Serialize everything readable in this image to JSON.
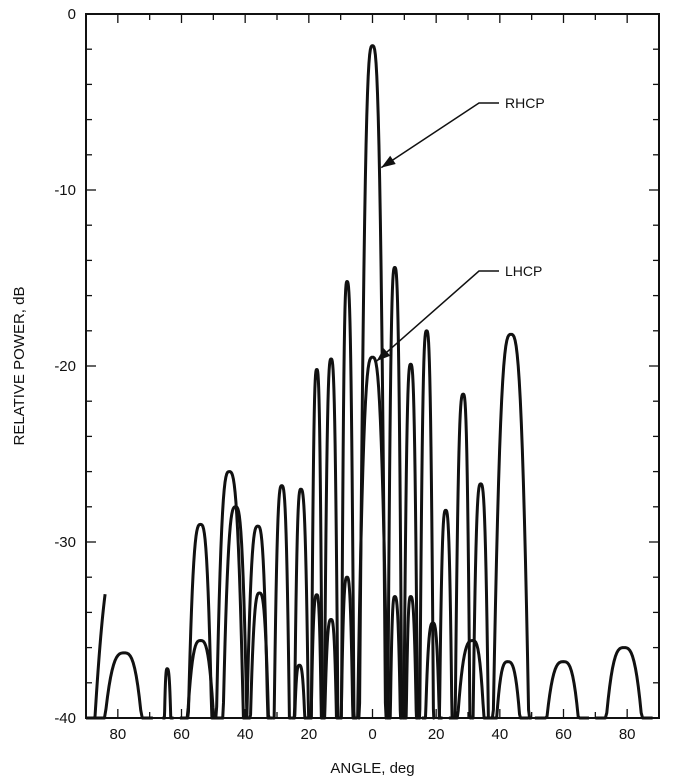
{
  "chart_data": {
    "type": "line",
    "xlabel": "ANGLE, deg",
    "ylabel": "RELATIVE POWER, dB",
    "xlim": [
      -90,
      90
    ],
    "ylim": [
      -40,
      0
    ],
    "x_ticks": [
      -80,
      -60,
      -40,
      -20,
      0,
      20,
      40,
      60,
      80
    ],
    "x_tick_labels": [
      "80",
      "60",
      "40",
      "20",
      "0",
      "20",
      "40",
      "60",
      "80"
    ],
    "y_ticks": [
      0,
      -10,
      -20,
      -30,
      -40
    ],
    "y_tick_labels": [
      "0",
      "-10",
      "-20",
      "-30",
      "-40"
    ],
    "grid": false,
    "series": [
      {
        "name": "RHCP",
        "lobes": [
          [
            -90,
            -84,
            -78.5,
            -30.2
          ],
          [
            -66,
            -62.5,
            -64.5,
            -37.2
          ],
          [
            -59,
            -49.5,
            -54,
            -29.0
          ],
          [
            -50,
            -39.5,
            -45,
            -26.0
          ],
          [
            -40.5,
            -32,
            -36,
            -29.1
          ],
          [
            -31.5,
            -25.5,
            -28.5,
            -26.8
          ],
          [
            -25,
            -19.5,
            -22.5,
            -27.0
          ],
          [
            -19.5,
            -15.5,
            -17.5,
            -20.2
          ],
          [
            -15.5,
            -10.5,
            -13,
            -19.6
          ],
          [
            -10,
            -5.5,
            -8,
            -15.2
          ],
          [
            -4.5,
            4.5,
            0,
            -1.8
          ],
          [
            4.5,
            9.5,
            7,
            -14.4
          ],
          [
            9.5,
            14.5,
            12,
            -19.9
          ],
          [
            14.5,
            19.5,
            17,
            -18.0
          ],
          [
            20.5,
            25.5,
            23,
            -28.2
          ],
          [
            25.5,
            31,
            28.5,
            -21.6
          ],
          [
            31,
            37,
            34,
            -26.7
          ],
          [
            37,
            50,
            43.5,
            -18.2
          ]
        ]
      },
      {
        "name": "LHCP",
        "lobes": [
          [
            -88,
            -69,
            -78,
            -36.3
          ],
          [
            -60.5,
            -47.5,
            -54,
            -35.6
          ],
          [
            -48,
            -38.5,
            -43,
            -28.0
          ],
          [
            -39.5,
            -31.5,
            -35.5,
            -32.9
          ],
          [
            -25.5,
            -20,
            -23,
            -37.0
          ],
          [
            -20,
            -15.5,
            -17.5,
            -33.0
          ],
          [
            -16,
            -10.5,
            -13,
            -34.4
          ],
          [
            -10.5,
            -5.5,
            -8,
            -32.0
          ],
          [
            -5.5,
            5.5,
            0,
            -19.5
          ],
          [
            5,
            9.5,
            7,
            -33.1
          ],
          [
            10,
            14.5,
            12,
            -33.1
          ],
          [
            15.5,
            22,
            19,
            -34.6
          ],
          [
            24,
            37,
            31.5,
            -35.6
          ],
          [
            36.5,
            49,
            42.5,
            -36.8
          ],
          [
            51,
            68,
            60,
            -36.8
          ],
          [
            70,
            88,
            79,
            -36.0
          ]
        ]
      }
    ],
    "annotations": [
      {
        "text": "RHCP",
        "points_to": [
          1.5,
          -8.5
        ]
      },
      {
        "text": "LHCP",
        "points_to": [
          0,
          -19.5
        ]
      }
    ]
  }
}
